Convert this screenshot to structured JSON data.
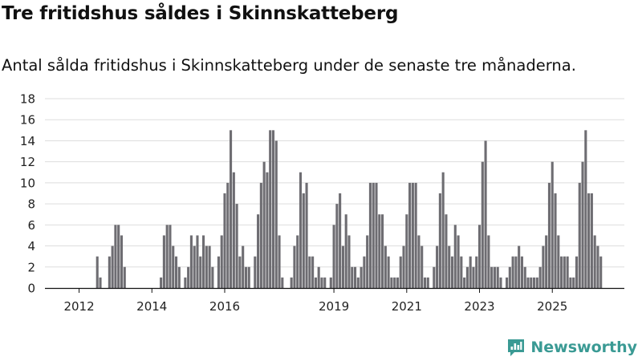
{
  "title": "Tre fritidshus såldes i Skinnskatteberg",
  "subtitle": "Antal sålda fritidshus i Skinnskatteberg under de senaste tre månaderna.",
  "brand": {
    "name": "Newsworthy",
    "icon": "newsworthy-logo-icon",
    "color": "#3a9a94"
  },
  "colors": {
    "bar": "#6e6d72",
    "highlight": "#2a9d95",
    "grid": "#dddddd",
    "axis": "#111111"
  },
  "chart_data": {
    "type": "bar",
    "title": "Tre fritidshus såldes i Skinnskatteberg",
    "subtitle": "Antal sålda fritidshus i Skinnskatteberg under de senaste tre månaderna.",
    "xlabel": "",
    "ylabel": "",
    "ylim": [
      0,
      18
    ],
    "y_ticks": [
      0,
      2,
      4,
      6,
      8,
      10,
      12,
      14,
      16,
      18
    ],
    "grid": true,
    "x_tick_labels": [
      {
        "label": "2012",
        "index": 2
      },
      {
        "label": "2014",
        "index": 26
      },
      {
        "label": "2016",
        "index": 50
      },
      {
        "label": "2019",
        "index": 86
      },
      {
        "label": "2021",
        "index": 110
      },
      {
        "label": "2023",
        "index": 134
      },
      {
        "label": "2025",
        "index": 158
      }
    ],
    "values": [
      null,
      null,
      null,
      null,
      null,
      null,
      null,
      null,
      3,
      1,
      null,
      null,
      3,
      4,
      6,
      6,
      5,
      2,
      null,
      null,
      null,
      null,
      null,
      null,
      null,
      null,
      null,
      null,
      null,
      1,
      5,
      6,
      6,
      4,
      3,
      2,
      null,
      1,
      2,
      5,
      4,
      5,
      3,
      5,
      4,
      4,
      2,
      null,
      3,
      5,
      9,
      10,
      15,
      11,
      8,
      3,
      4,
      2,
      2,
      null,
      3,
      7,
      10,
      12,
      11,
      15,
      15,
      14,
      5,
      1,
      null,
      null,
      1,
      4,
      5,
      11,
      9,
      10,
      3,
      3,
      1,
      2,
      1,
      1,
      null,
      1,
      6,
      8,
      9,
      4,
      7,
      5,
      2,
      2,
      1,
      2,
      3,
      5,
      10,
      10,
      10,
      7,
      7,
      4,
      3,
      1,
      1,
      1,
      3,
      4,
      7,
      10,
      10,
      10,
      5,
      4,
      1,
      1,
      null,
      2,
      4,
      9,
      11,
      7,
      4,
      3,
      6,
      5,
      3,
      1,
      2,
      3,
      2,
      3,
      6,
      12,
      14,
      5,
      2,
      2,
      2,
      1,
      null,
      1,
      2,
      3,
      3,
      4,
      3,
      2,
      1,
      1,
      1,
      1,
      2,
      4,
      5,
      10,
      12,
      9,
      5,
      3,
      3,
      3,
      1,
      1,
      3,
      10,
      12,
      15,
      9,
      9,
      5,
      4,
      3
    ],
    "highlight_index": 175,
    "highlight_label": "3"
  }
}
